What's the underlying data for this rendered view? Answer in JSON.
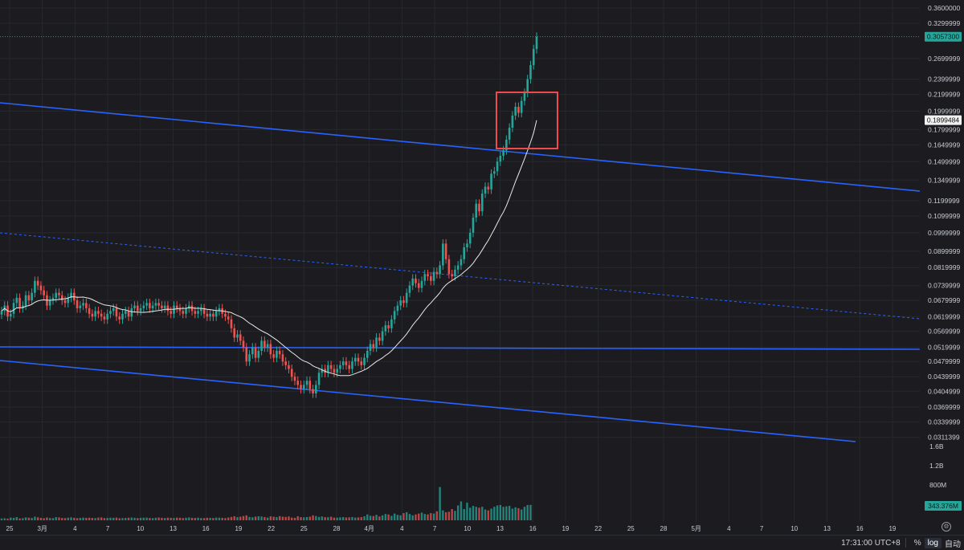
{
  "chart_data": {
    "type": "candlestick",
    "symbol_scale": "log",
    "y_ticks": [
      "0.3600000",
      "0.3299999",
      "0.2699999",
      "0.2399999",
      "0.2199999",
      "0.1999999",
      "0.1799999",
      "0.1649999",
      "0.1499999",
      "0.1349999",
      "0.1199999",
      "0.1099999",
      "0.0999999",
      "0.0899999",
      "0.0819999",
      "0.0739999",
      "0.0679999",
      "0.0619999",
      "0.0569999",
      "0.0519999",
      "0.0479999",
      "0.0439999",
      "0.0404999",
      "0.0369999",
      "0.0339999",
      "0.0311399"
    ],
    "volume_ticks": [
      "1.6B",
      "1.2B",
      "800M"
    ],
    "x_ticks": [
      "25",
      "3月",
      "4",
      "7",
      "10",
      "13",
      "16",
      "19",
      "22",
      "25",
      "28",
      "4月",
      "4",
      "7",
      "10",
      "13",
      "16",
      "19",
      "22",
      "25",
      "28",
      "5月",
      "4",
      "7",
      "10",
      "13",
      "16",
      "19"
    ],
    "price_range": [
      0.0311,
      0.36
    ],
    "last_price": "0.3057300",
    "ma_value": "0.1899484",
    "last_volume": "343.376M",
    "candles_close": [
      0.064,
      0.066,
      0.062,
      0.063,
      0.067,
      0.069,
      0.065,
      0.066,
      0.07,
      0.068,
      0.071,
      0.076,
      0.074,
      0.072,
      0.07,
      0.066,
      0.068,
      0.069,
      0.071,
      0.07,
      0.068,
      0.067,
      0.069,
      0.071,
      0.068,
      0.065,
      0.066,
      0.067,
      0.065,
      0.063,
      0.062,
      0.064,
      0.063,
      0.062,
      0.061,
      0.063,
      0.064,
      0.065,
      0.062,
      0.061,
      0.063,
      0.064,
      0.062,
      0.065,
      0.066,
      0.064,
      0.065,
      0.066,
      0.067,
      0.065,
      0.066,
      0.067,
      0.066,
      0.065,
      0.066,
      0.064,
      0.063,
      0.066,
      0.065,
      0.064,
      0.063,
      0.065,
      0.066,
      0.064,
      0.063,
      0.064,
      0.065,
      0.063,
      0.062,
      0.063,
      0.062,
      0.064,
      0.065,
      0.063,
      0.062,
      0.061,
      0.058,
      0.055,
      0.056,
      0.054,
      0.052,
      0.048,
      0.05,
      0.052,
      0.049,
      0.051,
      0.054,
      0.052,
      0.053,
      0.05,
      0.049,
      0.051,
      0.05,
      0.048,
      0.047,
      0.046,
      0.044,
      0.043,
      0.042,
      0.041,
      0.042,
      0.043,
      0.041,
      0.04,
      0.042,
      0.045,
      0.046,
      0.045,
      0.047,
      0.046,
      0.045,
      0.046,
      0.047,
      0.048,
      0.047,
      0.046,
      0.048,
      0.049,
      0.048,
      0.047,
      0.049,
      0.051,
      0.053,
      0.052,
      0.055,
      0.054,
      0.057,
      0.059,
      0.058,
      0.061,
      0.064,
      0.066,
      0.068,
      0.067,
      0.071,
      0.074,
      0.077,
      0.075,
      0.073,
      0.076,
      0.079,
      0.078,
      0.076,
      0.08,
      0.079,
      0.083,
      0.094,
      0.086,
      0.079,
      0.078,
      0.081,
      0.083,
      0.086,
      0.092,
      0.094,
      0.1,
      0.109,
      0.118,
      0.113,
      0.125,
      0.13,
      0.128,
      0.14,
      0.142,
      0.15,
      0.155,
      0.16,
      0.17,
      0.182,
      0.195,
      0.205,
      0.198,
      0.212,
      0.222,
      0.24,
      0.26,
      0.285,
      0.3057
    ],
    "volume_M": [
      40,
      45,
      38,
      60,
      55,
      70,
      42,
      48,
      65,
      58,
      52,
      80,
      66,
      54,
      46,
      62,
      50,
      48,
      70,
      64,
      52,
      49,
      58,
      66,
      55,
      48,
      52,
      60,
      54,
      57,
      53,
      49,
      61,
      64,
      50,
      52,
      58,
      55,
      60,
      45,
      50,
      52,
      58,
      62,
      56,
      49,
      55,
      58,
      60,
      52,
      48,
      56,
      62,
      55,
      50,
      58,
      54,
      52,
      60,
      56,
      49,
      57,
      63,
      55,
      52,
      58,
      50,
      48,
      56,
      54,
      52,
      60,
      58,
      55,
      50,
      62,
      74,
      90,
      70,
      80,
      95,
      110,
      75,
      68,
      82,
      90,
      85,
      72,
      60,
      88,
      78,
      70,
      92,
      80,
      75,
      85,
      60,
      55,
      90,
      70,
      65,
      72,
      80,
      110,
      95,
      75,
      85,
      70,
      68,
      80,
      60,
      58,
      65,
      70,
      62,
      66,
      72,
      60,
      64,
      70,
      90,
      130,
      100,
      95,
      120,
      85,
      110,
      140,
      130,
      100,
      150,
      120,
      110,
      160,
      180,
      140,
      110,
      130,
      150,
      170,
      140,
      130,
      160,
      150,
      200,
      740,
      220,
      180,
      190,
      250,
      210,
      330,
      420,
      250,
      390,
      280,
      320,
      300,
      280,
      300,
      240,
      220,
      260,
      300,
      330,
      340,
      300,
      310,
      320,
      260,
      290,
      270,
      240,
      300,
      340,
      343
    ]
  },
  "time_label": "17:31:00 UTC+8",
  "controls": {
    "percent": "%",
    "log": "log",
    "auto": "自动"
  }
}
